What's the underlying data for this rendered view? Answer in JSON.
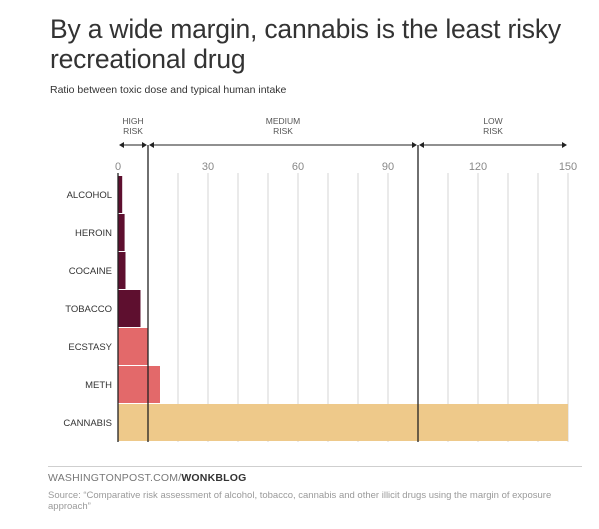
{
  "title": "By a wide margin, cannabis is the least risky recreational drug",
  "subtitle": "Ratio between toxic dose and typical human intake",
  "footer": {
    "site": "WASHINGTONPOST.COM/",
    "brand": "WONKBLOG"
  },
  "source": "Source: “Comparative risk assessment of alcohol, tobacco, cannabis and other illicit drugs using the margin of exposure approach”",
  "chart_data": {
    "type": "bar",
    "orientation": "horizontal",
    "categories": [
      "ALCOHOL",
      "HEROIN",
      "COCAINE",
      "TOBACCO",
      "ECSTASY",
      "METH",
      "CANNABIS"
    ],
    "values": [
      1.4,
      2.2,
      2.5,
      7.5,
      10,
      14,
      150
    ],
    "xlim": [
      0,
      150
    ],
    "xticks": [
      0,
      30,
      60,
      90,
      120,
      150
    ],
    "grid": true,
    "zones": [
      {
        "label": "HIGH RISK",
        "from": 0,
        "to": 10
      },
      {
        "label": "MEDIUM RISK",
        "from": 10,
        "to": 100
      },
      {
        "label": "LOW RISK",
        "from": 100,
        "to": 150
      }
    ],
    "colors": {
      "ALCOHOL": "#5e0f2f",
      "HEROIN": "#5e0f2f",
      "COCAINE": "#5e0f2f",
      "TOBACCO": "#5e0f2f",
      "ECSTASY": "#e3696a",
      "METH": "#e3696a",
      "CANNABIS": "#eec98a"
    }
  }
}
